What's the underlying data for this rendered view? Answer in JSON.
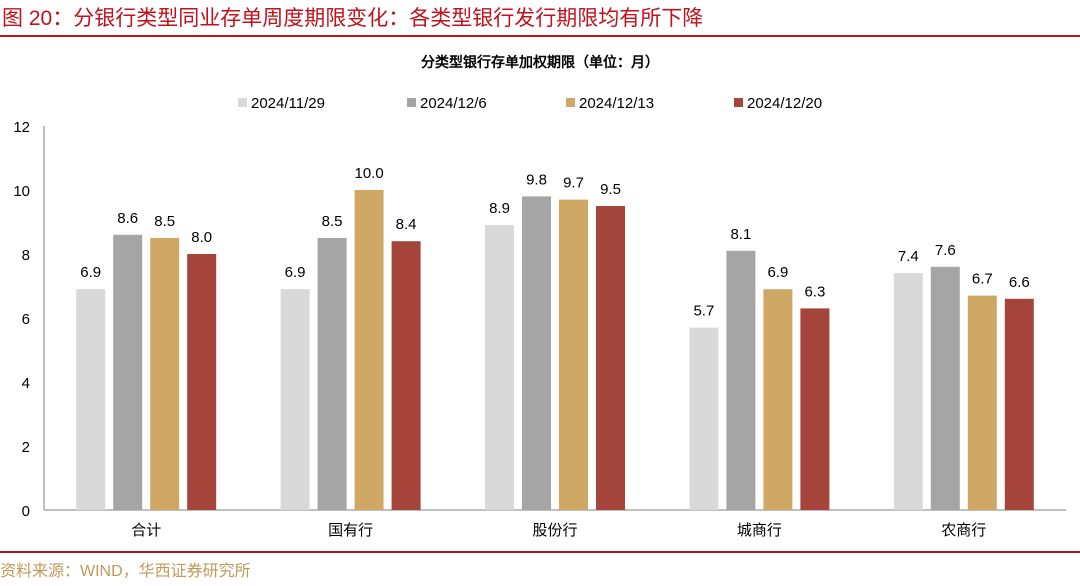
{
  "figure_title": "图 20：分银行类型同业存单周度期限变化：各类型银行发行期限均有所下降",
  "source": "资料来源：WIND，华西证券研究所",
  "chart_data": {
    "type": "bar",
    "title": "分类型银行存单加权期限（单位：月）",
    "categories": [
      "合计",
      "国有行",
      "股份行",
      "城商行",
      "农商行"
    ],
    "series": [
      {
        "name": "2024/11/29",
        "color": "#d9d9d9",
        "values": [
          6.9,
          6.9,
          8.9,
          5.7,
          7.4
        ]
      },
      {
        "name": "2024/12/6",
        "color": "#a5a5a5",
        "values": [
          8.6,
          8.5,
          9.8,
          8.1,
          7.6
        ]
      },
      {
        "name": "2024/12/13",
        "color": "#d0a865",
        "values": [
          8.5,
          10.0,
          9.7,
          6.9,
          6.7
        ]
      },
      {
        "name": "2024/12/20",
        "color": "#a5443a",
        "values": [
          8.0,
          8.4,
          9.5,
          6.3,
          6.6
        ]
      }
    ],
    "ylim": [
      0,
      12
    ],
    "yticks": [
      0,
      2,
      4,
      6,
      8,
      10,
      12
    ],
    "legend": "top",
    "grid": false,
    "data_labels": true
  }
}
